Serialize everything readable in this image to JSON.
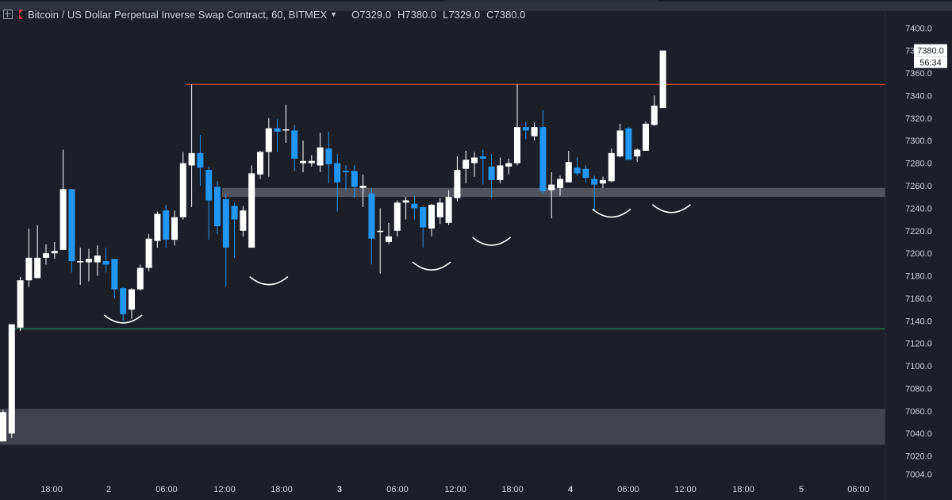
{
  "header": {
    "symbol": "Bitcoin / US Dollar Perpetual Inverse Swap Contract, 60, BITMEX",
    "open": "O7329.0",
    "high": "H7380.0",
    "low": "L7329.0",
    "close": "C7380.0"
  },
  "price_label": {
    "price": "7380.0",
    "countdown": "56:34"
  },
  "colors": {
    "bg": "#1c1f27",
    "up": "#ffffff",
    "down": "#2196f3",
    "resistance": "#e8572e",
    "support": "#26a65b",
    "zone": "#5a5e66",
    "text": "#d1d4dc"
  },
  "chart_data": {
    "type": "candlestick",
    "ylim": [
      7000,
      7415
    ],
    "y_ticks": [
      "7400.0",
      "7380.0",
      "7360.0",
      "7340.0",
      "7320.0",
      "7300.0",
      "7280.0",
      "7260.0",
      "7240.0",
      "7220.0",
      "7200.0",
      "7180.0",
      "7160.0",
      "7140.0",
      "7120.0",
      "7100.0",
      "7080.0",
      "7060.0",
      "7040.0",
      "7020.0",
      "7004.0"
    ],
    "x_ticks": [
      "18:00",
      "2",
      "06:00",
      "12:00",
      "18:00",
      "3",
      "06:00",
      "12:00",
      "18:00",
      "4",
      "06:00",
      "12:00",
      "18:00",
      "5",
      "06:00"
    ],
    "resistance_level": 7350,
    "support_level": 7133,
    "zones": [
      {
        "from": 7250,
        "to": 7258
      },
      {
        "from": 7030,
        "to": 7062
      }
    ],
    "candles": [
      {
        "o": 7033,
        "h": 7061,
        "l": 7033,
        "c": 7059
      },
      {
        "o": 7040,
        "h": 7137,
        "l": 7036,
        "c": 7137
      },
      {
        "o": 7134,
        "h": 7179,
        "l": 7131,
        "c": 7176
      },
      {
        "o": 7176,
        "h": 7222,
        "l": 7170,
        "c": 7196
      },
      {
        "o": 7178,
        "h": 7225,
        "l": 7178,
        "c": 7196
      },
      {
        "o": 7196,
        "h": 7208,
        "l": 7190,
        "c": 7200
      },
      {
        "o": 7200,
        "h": 7210,
        "l": 7195,
        "c": 7202
      },
      {
        "o": 7203,
        "h": 7292,
        "l": 7203,
        "c": 7257
      },
      {
        "o": 7257,
        "h": 7257,
        "l": 7183,
        "c": 7193
      },
      {
        "o": 7193,
        "h": 7205,
        "l": 7172,
        "c": 7193
      },
      {
        "o": 7192,
        "h": 7204,
        "l": 7175,
        "c": 7195
      },
      {
        "o": 7192,
        "h": 7207,
        "l": 7180,
        "c": 7198
      },
      {
        "o": 7193,
        "h": 7205,
        "l": 7183,
        "c": 7190
      },
      {
        "o": 7195,
        "h": 7195,
        "l": 7160,
        "c": 7168
      },
      {
        "o": 7169,
        "h": 7170,
        "l": 7140,
        "c": 7146
      },
      {
        "o": 7150,
        "h": 7169,
        "l": 7142,
        "c": 7168
      },
      {
        "o": 7168,
        "h": 7190,
        "l": 7167,
        "c": 7187
      },
      {
        "o": 7187,
        "h": 7217,
        "l": 7184,
        "c": 7213
      },
      {
        "o": 7211,
        "h": 7237,
        "l": 7205,
        "c": 7235
      },
      {
        "o": 7238,
        "h": 7243,
        "l": 7205,
        "c": 7212
      },
      {
        "o": 7212,
        "h": 7238,
        "l": 7207,
        "c": 7232
      },
      {
        "o": 7232,
        "h": 7290,
        "l": 7230,
        "c": 7280
      },
      {
        "o": 7278,
        "h": 7350,
        "l": 7241,
        "c": 7289
      },
      {
        "o": 7289,
        "h": 7305,
        "l": 7260,
        "c": 7276
      },
      {
        "o": 7274,
        "h": 7277,
        "l": 7212,
        "c": 7247
      },
      {
        "o": 7259,
        "h": 7264,
        "l": 7217,
        "c": 7224
      },
      {
        "o": 7248,
        "h": 7252,
        "l": 7170,
        "c": 7205
      },
      {
        "o": 7242,
        "h": 7245,
        "l": 7196,
        "c": 7230
      },
      {
        "o": 7220,
        "h": 7242,
        "l": 7215,
        "c": 7238
      },
      {
        "o": 7205,
        "h": 7278,
        "l": 7205,
        "c": 7271
      },
      {
        "o": 7270,
        "h": 7291,
        "l": 7266,
        "c": 7290
      },
      {
        "o": 7290,
        "h": 7320,
        "l": 7268,
        "c": 7311
      },
      {
        "o": 7311,
        "h": 7319,
        "l": 7290,
        "c": 7308
      },
      {
        "o": 7310,
        "h": 7332,
        "l": 7298,
        "c": 7310
      },
      {
        "o": 7309,
        "h": 7314,
        "l": 7273,
        "c": 7284
      },
      {
        "o": 7280,
        "h": 7300,
        "l": 7272,
        "c": 7282
      },
      {
        "o": 7280,
        "h": 7287,
        "l": 7277,
        "c": 7282
      },
      {
        "o": 7278,
        "h": 7307,
        "l": 7272,
        "c": 7294
      },
      {
        "o": 7293,
        "h": 7308,
        "l": 7262,
        "c": 7279
      },
      {
        "o": 7280,
        "h": 7288,
        "l": 7237,
        "c": 7263
      },
      {
        "o": 7273,
        "h": 7278,
        "l": 7256,
        "c": 7272
      },
      {
        "o": 7273,
        "h": 7278,
        "l": 7249,
        "c": 7259
      },
      {
        "o": 7258,
        "h": 7270,
        "l": 7241,
        "c": 7260
      },
      {
        "o": 7253,
        "h": 7258,
        "l": 7190,
        "c": 7213
      },
      {
        "o": 7219,
        "h": 7240,
        "l": 7182,
        "c": 7220
      },
      {
        "o": 7210,
        "h": 7227,
        "l": 7208,
        "c": 7215
      },
      {
        "o": 7220,
        "h": 7247,
        "l": 7215,
        "c": 7245
      },
      {
        "o": 7245,
        "h": 7250,
        "l": 7230,
        "c": 7247
      },
      {
        "o": 7244,
        "h": 7251,
        "l": 7230,
        "c": 7240
      },
      {
        "o": 7241,
        "h": 7242,
        "l": 7205,
        "c": 7223
      },
      {
        "o": 7222,
        "h": 7244,
        "l": 7215,
        "c": 7243
      },
      {
        "o": 7232,
        "h": 7249,
        "l": 7226,
        "c": 7245
      },
      {
        "o": 7227,
        "h": 7256,
        "l": 7225,
        "c": 7250
      },
      {
        "o": 7249,
        "h": 7286,
        "l": 7246,
        "c": 7274
      },
      {
        "o": 7275,
        "h": 7291,
        "l": 7262,
        "c": 7283
      },
      {
        "o": 7280,
        "h": 7290,
        "l": 7268,
        "c": 7285
      },
      {
        "o": 7286,
        "h": 7292,
        "l": 7261,
        "c": 7284
      },
      {
        "o": 7277,
        "h": 7288,
        "l": 7249,
        "c": 7265
      },
      {
        "o": 7265,
        "h": 7285,
        "l": 7262,
        "c": 7278
      },
      {
        "o": 7277,
        "h": 7284,
        "l": 7270,
        "c": 7280
      },
      {
        "o": 7280,
        "h": 7350,
        "l": 7278,
        "c": 7312
      },
      {
        "o": 7312,
        "h": 7317,
        "l": 7301,
        "c": 7309
      },
      {
        "o": 7304,
        "h": 7316,
        "l": 7300,
        "c": 7312
      },
      {
        "o": 7312,
        "h": 7327,
        "l": 7253,
        "c": 7255
      },
      {
        "o": 7256,
        "h": 7272,
        "l": 7231,
        "c": 7261
      },
      {
        "o": 7258,
        "h": 7269,
        "l": 7251,
        "c": 7266
      },
      {
        "o": 7263,
        "h": 7291,
        "l": 7263,
        "c": 7281
      },
      {
        "o": 7276,
        "h": 7285,
        "l": 7269,
        "c": 7271
      },
      {
        "o": 7275,
        "h": 7278,
        "l": 7263,
        "c": 7267
      },
      {
        "o": 7266,
        "h": 7269,
        "l": 7238,
        "c": 7261
      },
      {
        "o": 7262,
        "h": 7268,
        "l": 7258,
        "c": 7265
      },
      {
        "o": 7264,
        "h": 7293,
        "l": 7263,
        "c": 7289
      },
      {
        "o": 7286,
        "h": 7315,
        "l": 7285,
        "c": 7309
      },
      {
        "o": 7311,
        "h": 7312,
        "l": 7283,
        "c": 7283
      },
      {
        "o": 7286,
        "h": 7293,
        "l": 7281,
        "c": 7292
      },
      {
        "o": 7291,
        "h": 7317,
        "l": 7291,
        "c": 7315
      },
      {
        "o": 7314,
        "h": 7340,
        "l": 7313,
        "c": 7331
      },
      {
        "o": 7329,
        "h": 7380,
        "l": 7329,
        "c": 7380
      }
    ],
    "cups": [
      {
        "at": 14,
        "level": 7141
      },
      {
        "at": 31,
        "level": 7175
      },
      {
        "at": 50,
        "level": 7188
      },
      {
        "at": 57,
        "level": 7210
      },
      {
        "at": 71,
        "level": 7235
      },
      {
        "at": 78,
        "level": 7239
      }
    ]
  }
}
